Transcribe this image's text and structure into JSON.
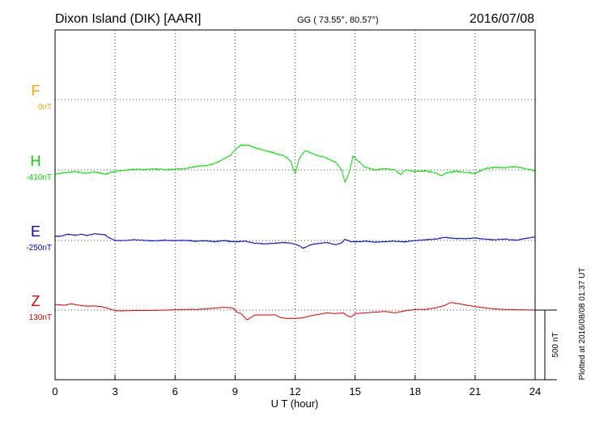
{
  "header": {
    "station": "Dixon Island (DIK)  [AARI]",
    "coords": "GG ( 73.55°,  80.57°)",
    "date": "2016/07/08"
  },
  "side_note": "Plotted at 2016/08/08 01:37 UT",
  "scale_label": "500 nT",
  "colors": {
    "F": "#ffa500",
    "H": "#00e000",
    "E": "#0000e0",
    "Z": "#e00000",
    "grid": "#000000",
    "axis": "#000000"
  },
  "chart_data": {
    "type": "line",
    "xlabel": "U T (hour)",
    "xlim": [
      0,
      24
    ],
    "xticks": [
      0,
      3,
      6,
      9,
      12,
      15,
      18,
      21,
      24
    ],
    "xtick_labels": [
      "0",
      "3",
      "6",
      "9",
      "12",
      "15",
      "18",
      "21",
      "24"
    ],
    "grid": true,
    "series": [
      {
        "name": "F",
        "baseline_label": "0nT",
        "points": []
      },
      {
        "name": "H",
        "baseline_label": "-410nT",
        "points": [
          [
            0.0,
            -30
          ],
          [
            0.5,
            -20
          ],
          [
            1.0,
            -10
          ],
          [
            1.5,
            -25
          ],
          [
            2.0,
            -15
          ],
          [
            2.5,
            -30
          ],
          [
            3.0,
            -10
          ],
          [
            3.5,
            0
          ],
          [
            4.0,
            5
          ],
          [
            4.5,
            3
          ],
          [
            5.0,
            8
          ],
          [
            5.5,
            2
          ],
          [
            6.0,
            5
          ],
          [
            6.5,
            10
          ],
          [
            7.0,
            25
          ],
          [
            7.5,
            30
          ],
          [
            8.0,
            45
          ],
          [
            8.5,
            85
          ],
          [
            8.8,
            110
          ],
          [
            9.0,
            145
          ],
          [
            9.3,
            180
          ],
          [
            9.7,
            175
          ],
          [
            10.0,
            160
          ],
          [
            10.5,
            140
          ],
          [
            11.0,
            120
          ],
          [
            11.5,
            100
          ],
          [
            11.8,
            60
          ],
          [
            12.0,
            -30
          ],
          [
            12.2,
            80
          ],
          [
            12.5,
            140
          ],
          [
            13.0,
            110
          ],
          [
            13.5,
            90
          ],
          [
            14.0,
            60
          ],
          [
            14.3,
            10
          ],
          [
            14.5,
            -90
          ],
          [
            14.7,
            -20
          ],
          [
            14.9,
            100
          ],
          [
            15.2,
            60
          ],
          [
            15.5,
            20
          ],
          [
            16.0,
            0
          ],
          [
            16.5,
            10
          ],
          [
            17.0,
            0
          ],
          [
            17.3,
            -35
          ],
          [
            17.5,
            0
          ],
          [
            18.0,
            -10
          ],
          [
            18.5,
            -5
          ],
          [
            19.0,
            -20
          ],
          [
            19.3,
            -40
          ],
          [
            19.6,
            -20
          ],
          [
            20.0,
            -10
          ],
          [
            20.5,
            -15
          ],
          [
            21.0,
            -25
          ],
          [
            21.5,
            10
          ],
          [
            22.0,
            20
          ],
          [
            22.5,
            15
          ],
          [
            23.0,
            25
          ],
          [
            23.5,
            10
          ],
          [
            24.0,
            -5
          ]
        ]
      },
      {
        "name": "E",
        "baseline_label": "-250nT",
        "points": [
          [
            0.0,
            28
          ],
          [
            0.3,
            32
          ],
          [
            0.6,
            45
          ],
          [
            1.0,
            38
          ],
          [
            1.3,
            45
          ],
          [
            1.6,
            35
          ],
          [
            2.0,
            48
          ],
          [
            2.5,
            40
          ],
          [
            2.7,
            20
          ],
          [
            3.0,
            0
          ],
          [
            3.5,
            -2
          ],
          [
            4.0,
            5
          ],
          [
            4.5,
            0
          ],
          [
            5.0,
            -3
          ],
          [
            5.5,
            2
          ],
          [
            6.0,
            -2
          ],
          [
            6.5,
            2
          ],
          [
            7.0,
            -5
          ],
          [
            7.5,
            -2
          ],
          [
            8.0,
            -8
          ],
          [
            8.5,
            -2
          ],
          [
            9.0,
            -10
          ],
          [
            9.5,
            -5
          ],
          [
            10.0,
            -20
          ],
          [
            10.5,
            -25
          ],
          [
            11.0,
            -20
          ],
          [
            11.5,
            -15
          ],
          [
            12.0,
            -25
          ],
          [
            12.4,
            -55
          ],
          [
            12.8,
            -30
          ],
          [
            13.2,
            -20
          ],
          [
            13.6,
            -15
          ],
          [
            14.0,
            -30
          ],
          [
            14.3,
            -20
          ],
          [
            14.5,
            8
          ],
          [
            14.7,
            -5
          ],
          [
            15.0,
            -10
          ],
          [
            15.5,
            -5
          ],
          [
            16.0,
            -12
          ],
          [
            16.5,
            -8
          ],
          [
            17.0,
            -5
          ],
          [
            17.5,
            -10
          ],
          [
            18.0,
            0
          ],
          [
            18.5,
            5
          ],
          [
            19.0,
            10
          ],
          [
            19.5,
            22
          ],
          [
            20.0,
            15
          ],
          [
            20.5,
            12
          ],
          [
            21.0,
            18
          ],
          [
            21.5,
            8
          ],
          [
            22.0,
            5
          ],
          [
            22.5,
            10
          ],
          [
            23.0,
            2
          ],
          [
            23.5,
            15
          ],
          [
            24.0,
            25
          ]
        ]
      },
      {
        "name": "Z",
        "baseline_label": "130nT",
        "points": [
          [
            0.0,
            40
          ],
          [
            0.5,
            35
          ],
          [
            0.8,
            45
          ],
          [
            1.2,
            35
          ],
          [
            1.6,
            28
          ],
          [
            2.0,
            30
          ],
          [
            2.3,
            25
          ],
          [
            2.6,
            15
          ],
          [
            3.0,
            -5
          ],
          [
            3.5,
            -5
          ],
          [
            4.0,
            -3
          ],
          [
            4.5,
            -3
          ],
          [
            5.0,
            -2
          ],
          [
            5.5,
            0
          ],
          [
            6.0,
            2
          ],
          [
            6.5,
            5
          ],
          [
            7.0,
            5
          ],
          [
            7.5,
            8
          ],
          [
            8.0,
            15
          ],
          [
            8.5,
            20
          ],
          [
            8.9,
            15
          ],
          [
            9.1,
            -15
          ],
          [
            9.3,
            -25
          ],
          [
            9.6,
            -70
          ],
          [
            10.0,
            -35
          ],
          [
            10.5,
            -35
          ],
          [
            11.0,
            -35
          ],
          [
            11.3,
            -55
          ],
          [
            11.6,
            -60
          ],
          [
            12.0,
            -60
          ],
          [
            12.4,
            -55
          ],
          [
            12.8,
            -40
          ],
          [
            13.2,
            -30
          ],
          [
            13.6,
            -20
          ],
          [
            14.0,
            -25
          ],
          [
            14.4,
            -20
          ],
          [
            14.6,
            -40
          ],
          [
            14.8,
            -50
          ],
          [
            15.0,
            -25
          ],
          [
            15.5,
            -20
          ],
          [
            16.0,
            -15
          ],
          [
            16.5,
            -10
          ],
          [
            17.0,
            -20
          ],
          [
            17.5,
            -5
          ],
          [
            18.0,
            5
          ],
          [
            18.5,
            5
          ],
          [
            19.0,
            15
          ],
          [
            19.5,
            35
          ],
          [
            19.8,
            55
          ],
          [
            20.2,
            45
          ],
          [
            20.6,
            35
          ],
          [
            21.0,
            25
          ],
          [
            21.5,
            15
          ],
          [
            22.0,
            8
          ],
          [
            22.5,
            5
          ],
          [
            23.0,
            3
          ],
          [
            23.5,
            2
          ],
          [
            24.0,
            0
          ]
        ]
      }
    ]
  }
}
